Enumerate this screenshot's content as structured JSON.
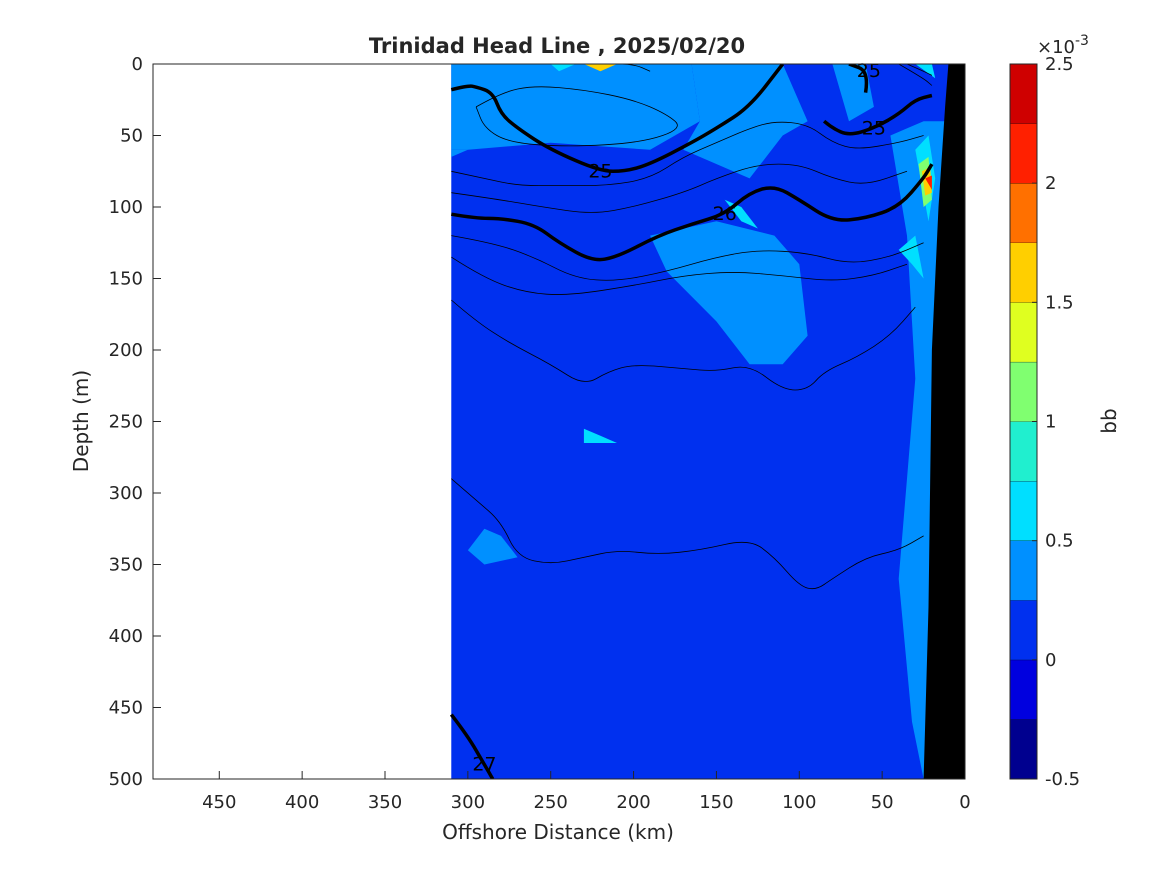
{
  "chart_data": {
    "type": "heatmap",
    "title": "Trinidad Head Line , 2025/02/20",
    "xlabel": "Offshore Distance (km)",
    "ylabel": "Depth (m)",
    "xlim": [
      490,
      0
    ],
    "ylim": [
      0,
      500
    ],
    "x_reversed": true,
    "y_reversed": true,
    "x_ticks": [
      "450",
      "400",
      "350",
      "300",
      "250",
      "200",
      "150",
      "100",
      "50",
      "0"
    ],
    "y_ticks": [
      "0",
      "50",
      "100",
      "150",
      "200",
      "250",
      "300",
      "350",
      "400",
      "450",
      "500"
    ],
    "colorbar": {
      "label": "bb",
      "exponent_label": "×10",
      "exponent_power": "-3",
      "range": [
        -0.5,
        2.5
      ],
      "ticks": [
        "-0.5",
        "0",
        "0.5",
        "1",
        "1.5",
        "2",
        "2.5"
      ],
      "levels": [
        {
          "from": -0.5,
          "to": -0.25,
          "color": "#00008f"
        },
        {
          "from": -0.25,
          "to": 0.0,
          "color": "#0000df"
        },
        {
          "from": 0.0,
          "to": 0.25,
          "color": "#0030ef"
        },
        {
          "from": 0.25,
          "to": 0.5,
          "color": "#0090ff"
        },
        {
          "from": 0.5,
          "to": 0.75,
          "color": "#00dfff"
        },
        {
          "from": 0.75,
          "to": 1.0,
          "color": "#20efcf"
        },
        {
          "from": 1.0,
          "to": 1.25,
          "color": "#80ff70"
        },
        {
          "from": 1.25,
          "to": 1.5,
          "color": "#dfff20"
        },
        {
          "from": 1.5,
          "to": 1.75,
          "color": "#ffcf00"
        },
        {
          "from": 1.75,
          "to": 2.0,
          "color": "#ff7000"
        },
        {
          "from": 2.0,
          "to": 2.25,
          "color": "#ff2000"
        },
        {
          "from": 2.25,
          "to": 2.5,
          "color": "#cf0000"
        }
      ]
    },
    "data_extent_km": [
      0,
      310
    ],
    "bathymetry_color": "#000000",
    "field_regions": [
      {
        "level": 0.25,
        "points": [
          [
            310,
            0
          ],
          [
            165,
            0
          ],
          [
            160,
            40
          ],
          [
            190,
            60
          ],
          [
            250,
            55
          ],
          [
            300,
            60
          ],
          [
            310,
            60
          ]
        ]
      },
      {
        "level": 0.25,
        "points": [
          [
            310,
            60
          ],
          [
            300,
            60
          ],
          [
            310,
            65
          ]
        ]
      },
      {
        "level": 0.25,
        "points": [
          [
            165,
            0
          ],
          [
            110,
            0
          ],
          [
            95,
            40
          ],
          [
            110,
            50
          ],
          [
            130,
            80
          ],
          [
            170,
            60
          ],
          [
            160,
            40
          ]
        ]
      },
      {
        "level": 0.25,
        "points": [
          [
            190,
            120
          ],
          [
            180,
            145
          ],
          [
            150,
            180
          ],
          [
            130,
            210
          ],
          [
            110,
            210
          ],
          [
            95,
            190
          ],
          [
            100,
            140
          ],
          [
            115,
            120
          ],
          [
            150,
            110
          ]
        ]
      },
      {
        "level": 0.25,
        "points": [
          [
            45,
            50
          ],
          [
            25,
            40
          ],
          [
            12,
            40
          ],
          [
            12,
            500
          ],
          [
            25,
            500
          ],
          [
            32,
            460
          ],
          [
            40,
            360
          ],
          [
            30,
            220
          ],
          [
            35,
            120
          ]
        ]
      },
      {
        "level": 0.25,
        "points": [
          [
            80,
            0
          ],
          [
            60,
            0
          ],
          [
            55,
            30
          ],
          [
            70,
            40
          ]
        ]
      },
      {
        "level": 0.25,
        "points": [
          [
            290,
            325
          ],
          [
            280,
            330
          ],
          [
            270,
            345
          ],
          [
            290,
            350
          ],
          [
            300,
            340
          ]
        ]
      },
      {
        "level": 0.5,
        "points": [
          [
            145,
            95
          ],
          [
            135,
            100
          ],
          [
            125,
            115
          ],
          [
            135,
            110
          ]
        ]
      },
      {
        "level": 0.5,
        "points": [
          [
            230,
            255
          ],
          [
            220,
            260
          ],
          [
            210,
            265
          ],
          [
            230,
            265
          ]
        ]
      },
      {
        "level": 0.5,
        "points": [
          [
            40,
            130
          ],
          [
            32,
            140
          ],
          [
            25,
            150
          ],
          [
            30,
            120
          ]
        ]
      },
      {
        "level": 0.5,
        "points": [
          [
            30,
            60
          ],
          [
            22,
            50
          ],
          [
            18,
            80
          ],
          [
            22,
            110
          ]
        ]
      },
      {
        "level": 0.5,
        "points": [
          [
            30,
            0
          ],
          [
            20,
            0
          ],
          [
            18,
            10
          ]
        ]
      },
      {
        "level": 1.0,
        "points": [
          [
            28,
            70
          ],
          [
            22,
            65
          ],
          [
            20,
            95
          ],
          [
            25,
            100
          ]
        ]
      },
      {
        "level": 1.5,
        "points": [
          [
            26,
            75
          ],
          [
            21,
            72
          ],
          [
            20,
            90
          ],
          [
            24,
            92
          ]
        ]
      },
      {
        "level": 2.0,
        "points": [
          [
            24,
            80
          ],
          [
            20,
            78
          ],
          [
            20,
            88
          ]
        ]
      },
      {
        "level": 1.5,
        "points": [
          [
            230,
            0
          ],
          [
            210,
            0
          ],
          [
            220,
            5
          ]
        ]
      },
      {
        "level": 0.5,
        "points": [
          [
            250,
            0
          ],
          [
            235,
            0
          ],
          [
            245,
            5
          ]
        ]
      }
    ],
    "density_contours": [
      {
        "label": "25",
        "bold": true,
        "points": [
          [
            310,
            18
          ],
          [
            300,
            15
          ],
          [
            295,
            16
          ],
          [
            285,
            20
          ],
          [
            280,
            35
          ],
          [
            270,
            45
          ],
          [
            250,
            60
          ],
          [
            220,
            75
          ],
          [
            205,
            75
          ],
          [
            190,
            70
          ],
          [
            165,
            55
          ],
          [
            150,
            45
          ],
          [
            130,
            30
          ],
          [
            110,
            0
          ]
        ]
      },
      {
        "label": "25",
        "bold": true,
        "points": [
          [
            85,
            40
          ],
          [
            80,
            45
          ],
          [
            70,
            50
          ],
          [
            55,
            45
          ],
          [
            40,
            35
          ],
          [
            30,
            25
          ],
          [
            20,
            22
          ]
        ]
      },
      {
        "label": "25",
        "bold": true,
        "points": [
          [
            60,
            20
          ],
          [
            58,
            5
          ],
          [
            70,
            0
          ]
        ]
      },
      {
        "label": "26",
        "bold": true,
        "points": [
          [
            310,
            105
          ],
          [
            295,
            108
          ],
          [
            280,
            108
          ],
          [
            260,
            112
          ],
          [
            245,
            125
          ],
          [
            225,
            138
          ],
          [
            210,
            135
          ],
          [
            185,
            120
          ],
          [
            165,
            112
          ],
          [
            145,
            105
          ],
          [
            130,
            90
          ],
          [
            115,
            85
          ],
          [
            100,
            95
          ],
          [
            80,
            110
          ],
          [
            60,
            108
          ],
          [
            40,
            100
          ],
          [
            25,
            80
          ],
          [
            20,
            70
          ]
        ]
      },
      {
        "label": "27",
        "bold": true,
        "points": [
          [
            310,
            455
          ],
          [
            300,
            470
          ],
          [
            290,
            490
          ],
          [
            285,
            500
          ]
        ]
      },
      {
        "label": "",
        "bold": false,
        "points": [
          [
            310,
            75
          ],
          [
            290,
            80
          ],
          [
            270,
            85
          ],
          [
            245,
            85
          ],
          [
            215,
            85
          ],
          [
            190,
            80
          ],
          [
            170,
            65
          ],
          [
            150,
            55
          ],
          [
            130,
            45
          ],
          [
            115,
            40
          ],
          [
            95,
            42
          ],
          [
            80,
            55
          ],
          [
            65,
            60
          ],
          [
            40,
            55
          ],
          [
            25,
            50
          ]
        ]
      },
      {
        "label": "",
        "bold": false,
        "points": [
          [
            310,
            90
          ],
          [
            280,
            95
          ],
          [
            255,
            100
          ],
          [
            225,
            105
          ],
          [
            200,
            100
          ],
          [
            170,
            90
          ],
          [
            150,
            80
          ],
          [
            125,
            70
          ],
          [
            100,
            70
          ],
          [
            80,
            80
          ],
          [
            60,
            85
          ],
          [
            35,
            75
          ]
        ]
      },
      {
        "label": "",
        "bold": false,
        "points": [
          [
            310,
            120
          ],
          [
            285,
            125
          ],
          [
            260,
            135
          ],
          [
            235,
            150
          ],
          [
            210,
            152
          ],
          [
            180,
            145
          ],
          [
            150,
            135
          ],
          [
            125,
            130
          ],
          [
            95,
            132
          ],
          [
            70,
            140
          ],
          [
            45,
            135
          ],
          [
            25,
            125
          ]
        ]
      },
      {
        "label": "",
        "bold": false,
        "points": [
          [
            310,
            135
          ],
          [
            290,
            150
          ],
          [
            265,
            160
          ],
          [
            240,
            162
          ],
          [
            200,
            155
          ],
          [
            170,
            148
          ],
          [
            140,
            145
          ],
          [
            110,
            148
          ],
          [
            80,
            152
          ],
          [
            55,
            148
          ],
          [
            35,
            140
          ]
        ]
      },
      {
        "label": "",
        "bold": false,
        "points": [
          [
            310,
            165
          ],
          [
            295,
            180
          ],
          [
            275,
            195
          ],
          [
            250,
            210
          ],
          [
            230,
            225
          ],
          [
            215,
            215
          ],
          [
            200,
            210
          ],
          [
            170,
            213
          ],
          [
            150,
            215
          ],
          [
            130,
            210
          ],
          [
            110,
            228
          ],
          [
            95,
            228
          ],
          [
            85,
            215
          ],
          [
            65,
            205
          ],
          [
            45,
            190
          ],
          [
            30,
            170
          ]
        ]
      },
      {
        "label": "",
        "bold": false,
        "points": [
          [
            310,
            290
          ],
          [
            295,
            305
          ],
          [
            280,
            320
          ],
          [
            270,
            345
          ],
          [
            250,
            350
          ],
          [
            230,
            345
          ],
          [
            210,
            340
          ],
          [
            185,
            343
          ],
          [
            160,
            340
          ],
          [
            130,
            332
          ],
          [
            115,
            345
          ],
          [
            100,
            365
          ],
          [
            90,
            368
          ],
          [
            80,
            360
          ],
          [
            60,
            345
          ],
          [
            40,
            340
          ],
          [
            25,
            330
          ]
        ]
      },
      {
        "label": "",
        "bold": false,
        "points": [
          [
            210,
            0
          ],
          [
            200,
            0
          ],
          [
            190,
            5
          ]
        ]
      },
      {
        "label": "",
        "bold": false,
        "points": [
          [
            295,
            30
          ],
          [
            280,
            20
          ],
          [
            260,
            15
          ],
          [
            230,
            18
          ],
          [
            200,
            25
          ],
          [
            180,
            35
          ],
          [
            170,
            45
          ],
          [
            195,
            55
          ],
          [
            240,
            58
          ],
          [
            275,
            55
          ],
          [
            290,
            45
          ],
          [
            295,
            30
          ]
        ]
      },
      {
        "label": "",
        "bold": false,
        "points": [
          [
            40,
            0
          ],
          [
            25,
            10
          ],
          [
            20,
            15
          ]
        ]
      },
      {
        "label": "",
        "bold": false,
        "points": [
          [
            35,
            0
          ],
          [
            25,
            5
          ],
          [
            20,
            8
          ]
        ]
      }
    ],
    "bathymetry": [
      [
        15,
        0
      ],
      [
        0,
        0
      ],
      [
        0,
        500
      ],
      [
        15,
        500
      ],
      [
        25,
        500
      ],
      [
        22,
        380
      ],
      [
        20,
        200
      ],
      [
        16,
        100
      ],
      [
        12,
        30
      ],
      [
        10,
        0
      ]
    ]
  }
}
